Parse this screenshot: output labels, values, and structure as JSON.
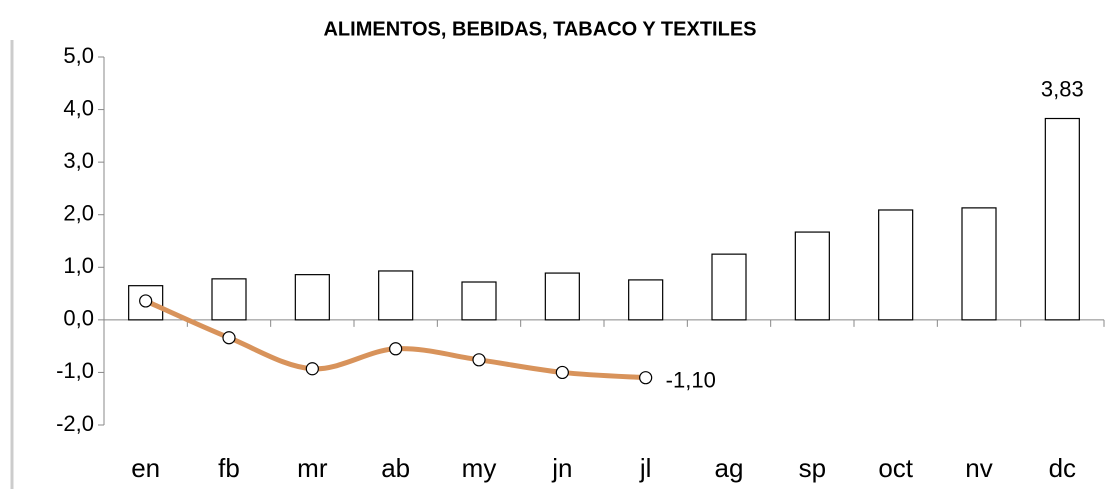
{
  "chart_data": {
    "type": "bar",
    "title": "ALIMENTOS, BEBIDAS, TABACO Y TEXTILES",
    "categories": [
      "en",
      "fb",
      "mr",
      "ab",
      "my",
      "jn",
      "jl",
      "ag",
      "sp",
      "oct",
      "nv",
      "dc"
    ],
    "series": [
      {
        "type": "bar",
        "color": "#ffffff",
        "values": [
          0.65,
          0.78,
          0.86,
          0.93,
          0.72,
          0.89,
          0.76,
          1.25,
          1.67,
          2.09,
          2.13,
          3.83
        ],
        "value_labels": [
          null,
          null,
          null,
          null,
          null,
          null,
          null,
          null,
          null,
          null,
          null,
          "3,83"
        ]
      },
      {
        "type": "line",
        "color": "#d8935b",
        "values": [
          0.36,
          -0.34,
          -0.93,
          -0.55,
          -0.76,
          -1.0,
          -1.1,
          null,
          null,
          null,
          null,
          null
        ],
        "value_labels": [
          null,
          null,
          null,
          null,
          null,
          null,
          "-1,10",
          null,
          null,
          null,
          null,
          null
        ]
      }
    ],
    "ylim": [
      -2,
      5
    ],
    "yticks": [
      {
        "value": -2,
        "label": "-2,0"
      },
      {
        "value": -1,
        "label": "-1,0"
      },
      {
        "value": 0,
        "label": "0,0"
      },
      {
        "value": 1,
        "label": "1,0"
      },
      {
        "value": 2,
        "label": "2,0"
      },
      {
        "value": 3,
        "label": "3,0"
      },
      {
        "value": 4,
        "label": "4,0"
      },
      {
        "value": 5,
        "label": "5,0"
      }
    ]
  }
}
